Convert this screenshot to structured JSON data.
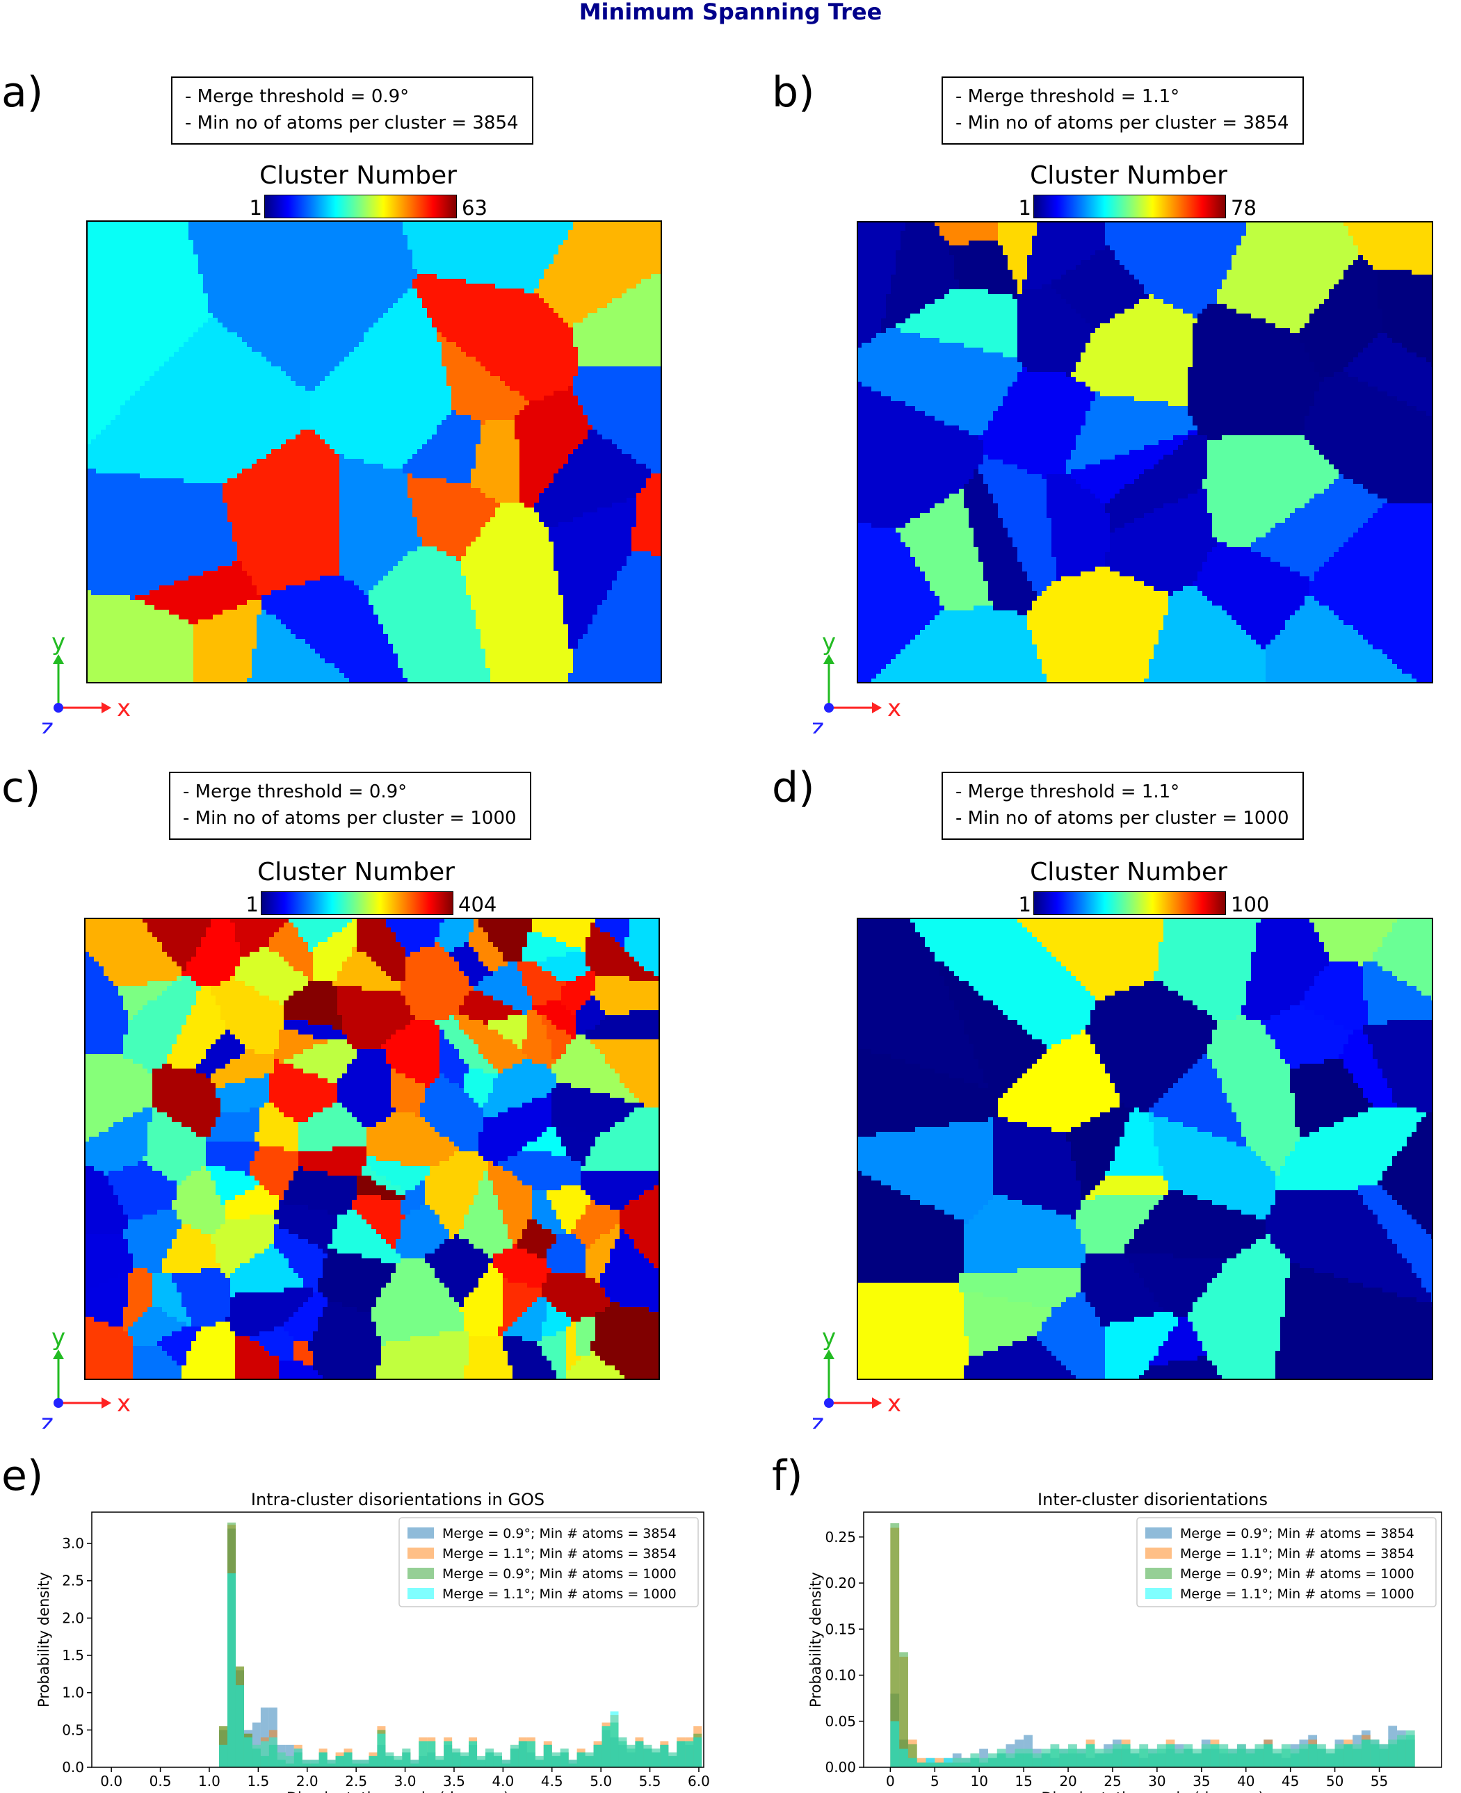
{
  "title": "Minimum Spanning Tree",
  "panels": [
    {
      "letter": "a)",
      "info": [
        "- Merge threshold = 0.9°",
        "- Min no of atoms per cluster = 3854"
      ],
      "colorbar": {
        "title": "Cluster Number",
        "min": "1",
        "max": "63"
      },
      "axes": {
        "y": "y",
        "x": "x",
        "z": "z"
      },
      "seed": 3,
      "grains": 28
    },
    {
      "letter": "b)",
      "info": [
        "- Merge threshold = 1.1°",
        "- Min no of atoms per cluster = 3854"
      ],
      "colorbar": {
        "title": "Cluster Number",
        "min": "1",
        "max": "78"
      },
      "axes": {
        "y": "y",
        "x": "x",
        "z": "z"
      },
      "seed": 7,
      "grains": 38
    },
    {
      "letter": "c)",
      "info": [
        "- Merge threshold = 0.9°",
        "- Min no of atoms per cluster = 1000"
      ],
      "colorbar": {
        "title": "Cluster Number",
        "min": "1",
        "max": "404"
      },
      "axes": {
        "y": "y",
        "x": "x",
        "z": "z"
      },
      "seed": 11,
      "grains": 140
    },
    {
      "letter": "d)",
      "info": [
        "- Merge threshold = 1.1°",
        "- Min no of atoms per cluster = 1000"
      ],
      "colorbar": {
        "title": "Cluster Number",
        "min": "1",
        "max": "100"
      },
      "axes": {
        "y": "y",
        "x": "x",
        "z": "z"
      },
      "seed": 19,
      "grains": 45
    }
  ],
  "colors": {
    "series": [
      "#1f77b4",
      "#ff7f0e",
      "#2ca02c",
      "#00ffff"
    ],
    "axis_z": "#2222ff",
    "axis_y": "#22bb22",
    "axis_x": "#ff2222"
  },
  "chart_data": [
    {
      "letter": "e)",
      "type": "bar",
      "title": "Intra-cluster disorientations in GOS",
      "xlabel": "Disorientation angle (degrees)",
      "ylabel": "Probability density",
      "xlim": [
        -0.2,
        6.05
      ],
      "ylim": [
        0,
        3.42
      ],
      "xticks": [
        0.0,
        0.5,
        1.0,
        1.5,
        2.0,
        2.5,
        3.0,
        3.5,
        4.0,
        4.5,
        5.0,
        5.5,
        6.0
      ],
      "xtick_labels": [
        "0.0",
        "0.5",
        "1.0",
        "1.5",
        "2.0",
        "2.5",
        "3.0",
        "3.5",
        "4.0",
        "4.5",
        "5.0",
        "5.5",
        "6.0"
      ],
      "yticks": [
        0.0,
        0.5,
        1.0,
        1.5,
        2.0,
        2.5,
        3.0
      ],
      "ytick_labels": [
        "0.0",
        "0.5",
        "1.0",
        "1.5",
        "2.0",
        "2.5",
        "3.0"
      ],
      "legend": "top-right",
      "bin_start": 1.1,
      "bin_width": 0.085,
      "series": [
        {
          "name": "Merge = 0.9°; Min # atoms = 3854",
          "values": [
            0.5,
            3.2,
            1.3,
            0.5,
            0.6,
            0.8,
            0.8,
            0.3,
            0.3,
            0.25,
            0.1,
            0.1,
            0.2,
            0.1,
            0.15,
            0.2,
            0.1,
            0.1,
            0.15,
            0.3,
            0.15,
            0.1,
            0.2,
            0.1,
            0.15,
            0.2,
            0.1,
            0.3,
            0.2,
            0.15,
            0.3,
            0.1,
            0.2,
            0.15,
            0.1,
            0.25,
            0.35,
            0.2,
            0.1,
            0.3,
            0.15,
            0.2,
            0.1,
            0.2,
            0.15,
            0.3,
            0.5,
            0.4,
            0.3,
            0.2,
            0.35,
            0.25,
            0.2,
            0.3,
            0.15,
            0.35,
            0.3,
            0.4
          ]
        },
        {
          "name": "Merge = 1.1°; Min # atoms = 3854",
          "values": [
            0.55,
            3.25,
            1.35,
            0.45,
            0.3,
            0.4,
            0.5,
            0.2,
            0.15,
            0.3,
            0.1,
            0.1,
            0.25,
            0.1,
            0.2,
            0.25,
            0.1,
            0.1,
            0.2,
            0.55,
            0.2,
            0.15,
            0.25,
            0.1,
            0.4,
            0.4,
            0.15,
            0.4,
            0.25,
            0.2,
            0.4,
            0.15,
            0.25,
            0.2,
            0.1,
            0.3,
            0.4,
            0.4,
            0.15,
            0.35,
            0.2,
            0.25,
            0.1,
            0.25,
            0.2,
            0.35,
            0.6,
            0.7,
            0.4,
            0.3,
            0.4,
            0.3,
            0.25,
            0.35,
            0.2,
            0.4,
            0.4,
            0.55
          ]
        },
        {
          "name": "Merge = 0.9°; Min # atoms = 1000",
          "values": [
            0.55,
            3.28,
            1.35,
            0.45,
            0.25,
            0.15,
            0.3,
            0.1,
            0.05,
            0.2,
            0.05,
            0.05,
            0.2,
            0.05,
            0.15,
            0.2,
            0.05,
            0.05,
            0.15,
            0.5,
            0.15,
            0.1,
            0.2,
            0.05,
            0.35,
            0.35,
            0.1,
            0.35,
            0.2,
            0.15,
            0.35,
            0.1,
            0.2,
            0.15,
            0.05,
            0.25,
            0.35,
            0.35,
            0.1,
            0.3,
            0.15,
            0.2,
            0.05,
            0.2,
            0.15,
            0.3,
            0.55,
            0.6,
            0.35,
            0.25,
            0.35,
            0.25,
            0.2,
            0.3,
            0.15,
            0.35,
            0.35,
            0.45
          ]
        },
        {
          "name": "Merge = 1.1°; Min # atoms = 1000",
          "values": [
            0.3,
            2.6,
            1.1,
            0.4,
            0.3,
            0.35,
            0.4,
            0.2,
            0.15,
            0.25,
            0.1,
            0.1,
            0.2,
            0.1,
            0.15,
            0.2,
            0.1,
            0.1,
            0.15,
            0.45,
            0.2,
            0.15,
            0.25,
            0.1,
            0.35,
            0.35,
            0.15,
            0.35,
            0.25,
            0.2,
            0.35,
            0.15,
            0.25,
            0.2,
            0.1,
            0.3,
            0.35,
            0.35,
            0.15,
            0.3,
            0.2,
            0.25,
            0.1,
            0.2,
            0.2,
            0.3,
            0.55,
            0.75,
            0.4,
            0.3,
            0.35,
            0.3,
            0.25,
            0.3,
            0.2,
            0.35,
            0.35,
            0.4
          ]
        }
      ]
    },
    {
      "letter": "f)",
      "type": "bar",
      "title": "Inter-cluster disorientations",
      "xlabel": "Disorientation angle (degrees)",
      "ylabel": "Probability density",
      "xlim": [
        -3,
        62
      ],
      "ylim": [
        0,
        0.277
      ],
      "xticks": [
        0,
        5,
        10,
        15,
        20,
        25,
        30,
        35,
        40,
        45,
        50,
        55
      ],
      "xtick_labels": [
        "0",
        "5",
        "10",
        "15",
        "20",
        "25",
        "30",
        "35",
        "40",
        "45",
        "50",
        "55"
      ],
      "yticks": [
        0.0,
        0.05,
        0.1,
        0.15,
        0.2,
        0.25
      ],
      "ytick_labels": [
        "0.00",
        "0.05",
        "0.10",
        "0.15",
        "0.20",
        "0.25"
      ],
      "legend": "top-right",
      "bin_start": 0,
      "bin_width": 1.0,
      "series": [
        {
          "name": "Merge = 0.9°; Min # atoms = 3854",
          "values": [
            0.08,
            0.03,
            0.01,
            0.005,
            0.01,
            0.005,
            0.01,
            0.015,
            0.01,
            0.01,
            0.02,
            0.01,
            0.015,
            0.025,
            0.03,
            0.035,
            0.02,
            0.015,
            0.01,
            0.02,
            0.015,
            0.02,
            0.01,
            0.015,
            0.025,
            0.03,
            0.02,
            0.015,
            0.01,
            0.02,
            0.015,
            0.02,
            0.025,
            0.02,
            0.015,
            0.03,
            0.02,
            0.015,
            0.02,
            0.025,
            0.02,
            0.02,
            0.03,
            0.015,
            0.01,
            0.025,
            0.03,
            0.035,
            0.02,
            0.015,
            0.03,
            0.025,
            0.035,
            0.04,
            0.03,
            0.025,
            0.045,
            0.04,
            0.03
          ]
        },
        {
          "name": "Merge = 1.1°; Min # atoms = 3854",
          "values": [
            0.26,
            0.12,
            0.03,
            0.01,
            0.005,
            0.01,
            0.005,
            0.01,
            0.01,
            0.015,
            0.01,
            0.015,
            0.02,
            0.015,
            0.02,
            0.02,
            0.015,
            0.02,
            0.025,
            0.02,
            0.025,
            0.02,
            0.03,
            0.02,
            0.02,
            0.025,
            0.03,
            0.02,
            0.025,
            0.02,
            0.025,
            0.03,
            0.02,
            0.025,
            0.02,
            0.025,
            0.03,
            0.025,
            0.02,
            0.025,
            0.02,
            0.025,
            0.03,
            0.02,
            0.025,
            0.02,
            0.025,
            0.03,
            0.025,
            0.02,
            0.025,
            0.03,
            0.025,
            0.035,
            0.03,
            0.025,
            0.03,
            0.035,
            0.04
          ]
        },
        {
          "name": "Merge = 0.9°; Min # atoms = 1000",
          "values": [
            0.265,
            0.125,
            0.025,
            0.005,
            0.005,
            0.005,
            0.005,
            0.005,
            0.005,
            0.01,
            0.005,
            0.01,
            0.015,
            0.01,
            0.015,
            0.015,
            0.01,
            0.015,
            0.02,
            0.015,
            0.02,
            0.015,
            0.025,
            0.015,
            0.015,
            0.02,
            0.025,
            0.015,
            0.02,
            0.015,
            0.02,
            0.025,
            0.015,
            0.02,
            0.015,
            0.02,
            0.025,
            0.02,
            0.015,
            0.02,
            0.015,
            0.02,
            0.025,
            0.015,
            0.02,
            0.015,
            0.02,
            0.025,
            0.02,
            0.015,
            0.02,
            0.025,
            0.02,
            0.03,
            0.025,
            0.02,
            0.025,
            0.03,
            0.035
          ]
        },
        {
          "name": "Merge = 1.1°; Min # atoms = 1000",
          "values": [
            0.05,
            0.02,
            0.01,
            0.005,
            0.01,
            0.005,
            0.01,
            0.01,
            0.01,
            0.015,
            0.01,
            0.015,
            0.02,
            0.015,
            0.02,
            0.02,
            0.015,
            0.02,
            0.025,
            0.02,
            0.025,
            0.02,
            0.025,
            0.02,
            0.02,
            0.025,
            0.025,
            0.02,
            0.025,
            0.02,
            0.025,
            0.025,
            0.02,
            0.025,
            0.02,
            0.025,
            0.025,
            0.025,
            0.02,
            0.025,
            0.02,
            0.025,
            0.025,
            0.02,
            0.025,
            0.02,
            0.025,
            0.025,
            0.025,
            0.02,
            0.025,
            0.025,
            0.025,
            0.03,
            0.03,
            0.025,
            0.03,
            0.035,
            0.04
          ]
        }
      ]
    }
  ]
}
